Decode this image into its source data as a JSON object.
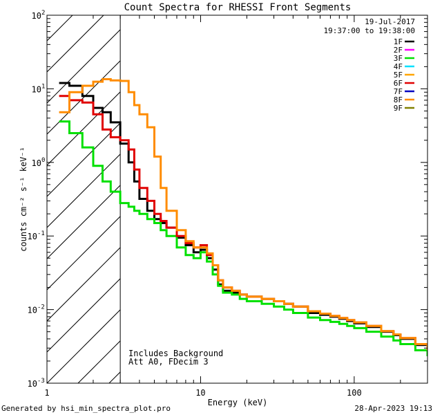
{
  "chart_data": {
    "type": "line",
    "title": "Count Spectra for RHESSI Front Segments",
    "xlabel": "Energy (keV)",
    "ylabel": "counts cm⁻² s⁻¹ keV⁻¹",
    "xscale": "log",
    "yscale": "log",
    "xlim": [
      1,
      300
    ],
    "ylim": [
      0.001,
      100
    ],
    "x_tick_labels": [
      {
        "value": 1,
        "label": "1"
      },
      {
        "value": 10,
        "label": "10"
      },
      {
        "value": 100,
        "label": "100"
      }
    ],
    "y_tick_labels": [
      {
        "value": 100,
        "base": "10",
        "exp": "2"
      },
      {
        "value": 10,
        "base": "10",
        "exp": "1"
      },
      {
        "value": 1,
        "base": "10",
        "exp": "0"
      },
      {
        "value": 0.1,
        "base": "10",
        "exp": "-1"
      },
      {
        "value": 0.01,
        "base": "10",
        "exp": "-2"
      },
      {
        "value": 0.001,
        "base": "10",
        "exp": "-3"
      }
    ],
    "attenuated_region_max_kev": 3,
    "date": "19-Jul-2017",
    "time_range": "19:37:00 to 19:38:00",
    "annotations": [
      "Includes Background",
      "Att A0, FDecim 3"
    ],
    "legend": [
      {
        "label": "1F",
        "color": "#000000"
      },
      {
        "label": "2F",
        "color": "#ff00ff"
      },
      {
        "label": "3F",
        "color": "#00e000"
      },
      {
        "label": "4F",
        "color": "#00e0ff"
      },
      {
        "label": "5F",
        "color": "#ffa500"
      },
      {
        "label": "6F",
        "color": "#e00000"
      },
      {
        "label": "7F",
        "color": "#0000c0"
      },
      {
        "label": "8F",
        "color": "#ff8c00"
      },
      {
        "label": "9F",
        "color": "#808000"
      }
    ],
    "series": [
      {
        "name": "1F",
        "color": "#000000",
        "x": [
          1.2,
          1.4,
          1.7,
          2.0,
          2.3,
          2.6,
          3.0,
          3.4,
          3.7,
          4.0,
          4.5,
          5.0,
          5.5,
          6.0,
          7.0,
          8.0,
          9.0,
          10.0,
          11.0,
          12.0,
          13.0,
          14.0,
          16.0,
          18.0,
          20.0,
          25.0,
          30.0,
          35.0,
          40.0,
          50.0,
          60.0,
          70.0,
          80.0,
          90.0,
          100.0,
          120.0,
          150.0,
          180.0,
          200.0,
          250.0,
          300.0
        ],
        "y": [
          12,
          11,
          8,
          5.5,
          4.8,
          3.5,
          1.8,
          1.0,
          0.55,
          0.32,
          0.22,
          0.17,
          0.15,
          0.13,
          0.095,
          0.075,
          0.06,
          0.065,
          0.05,
          0.035,
          0.022,
          0.018,
          0.017,
          0.016,
          0.015,
          0.014,
          0.013,
          0.012,
          0.011,
          0.009,
          0.0085,
          0.008,
          0.0075,
          0.007,
          0.0065,
          0.0058,
          0.005,
          0.0045,
          0.004,
          0.0033,
          0.0028
        ]
      },
      {
        "name": "3F",
        "color": "#00e000",
        "x": [
          1.2,
          1.4,
          1.7,
          2.0,
          2.3,
          2.6,
          3.0,
          3.4,
          3.7,
          4.0,
          4.5,
          5.0,
          5.5,
          6.0,
          7.0,
          8.0,
          9.0,
          10.0,
          11.0,
          12.0,
          13.0,
          14.0,
          16.0,
          18.0,
          20.0,
          25.0,
          30.0,
          35.0,
          40.0,
          50.0,
          60.0,
          70.0,
          80.0,
          90.0,
          100.0,
          120.0,
          150.0,
          180.0,
          200.0,
          250.0,
          300.0
        ],
        "y": [
          3.6,
          2.5,
          1.6,
          0.9,
          0.55,
          0.4,
          0.28,
          0.25,
          0.22,
          0.2,
          0.17,
          0.15,
          0.12,
          0.1,
          0.07,
          0.055,
          0.05,
          0.06,
          0.045,
          0.03,
          0.021,
          0.017,
          0.016,
          0.014,
          0.013,
          0.012,
          0.011,
          0.01,
          0.009,
          0.0078,
          0.0072,
          0.0068,
          0.0064,
          0.006,
          0.0056,
          0.005,
          0.0043,
          0.0038,
          0.0034,
          0.0028,
          0.0024
        ]
      },
      {
        "name": "6F",
        "color": "#e00000",
        "x": [
          1.2,
          1.4,
          1.7,
          2.0,
          2.3,
          2.6,
          3.0,
          3.4,
          3.7,
          4.0,
          4.5,
          5.0,
          5.5,
          6.0,
          7.0,
          8.0,
          9.0,
          10.0,
          11.0,
          12.0,
          13.0,
          14.0,
          16.0,
          18.0,
          20.0,
          25.0,
          30.0,
          35.0,
          40.0,
          50.0,
          60.0,
          70.0,
          80.0,
          90.0,
          100.0,
          120.0,
          150.0,
          180.0,
          200.0,
          250.0,
          300.0
        ],
        "y": [
          8,
          7,
          6.5,
          4.5,
          2.8,
          2.2,
          2.0,
          1.5,
          0.8,
          0.45,
          0.3,
          0.2,
          0.16,
          0.13,
          0.1,
          0.08,
          0.07,
          0.075,
          0.055,
          0.04,
          0.025,
          0.02,
          0.018,
          0.016,
          0.015,
          0.014,
          0.013,
          0.012,
          0.011,
          0.0095,
          0.0088,
          0.0082,
          0.0077,
          0.0072,
          0.0067,
          0.006,
          0.0051,
          0.0046,
          0.0041,
          0.0034,
          0.0029
        ]
      },
      {
        "name": "8F",
        "color": "#ff8c00",
        "x": [
          1.2,
          1.4,
          1.7,
          2.0,
          2.3,
          2.6,
          3.0,
          3.4,
          3.7,
          4.0,
          4.5,
          5.0,
          5.5,
          6.0,
          7.0,
          8.0,
          9.0,
          10.0,
          11.0,
          12.0,
          13.0,
          14.0,
          16.0,
          18.0,
          20.0,
          25.0,
          30.0,
          35.0,
          40.0,
          50.0,
          60.0,
          70.0,
          80.0,
          90.0,
          100.0,
          120.0,
          150.0,
          180.0,
          200.0,
          250.0,
          300.0
        ],
        "y": [
          4.8,
          9,
          11,
          12.5,
          13.5,
          13,
          12.8,
          9,
          6,
          4.5,
          3,
          1.2,
          0.45,
          0.22,
          0.12,
          0.085,
          0.07,
          0.07,
          0.058,
          0.04,
          0.025,
          0.02,
          0.018,
          0.016,
          0.015,
          0.014,
          0.013,
          0.012,
          0.011,
          0.0095,
          0.0088,
          0.0082,
          0.0077,
          0.0072,
          0.0067,
          0.006,
          0.0051,
          0.0046,
          0.0041,
          0.0034,
          0.0029
        ]
      }
    ],
    "footer_left": "Generated by hsi_min_spectra_plot.pro",
    "footer_right": "28-Apr-2023 19:13"
  }
}
